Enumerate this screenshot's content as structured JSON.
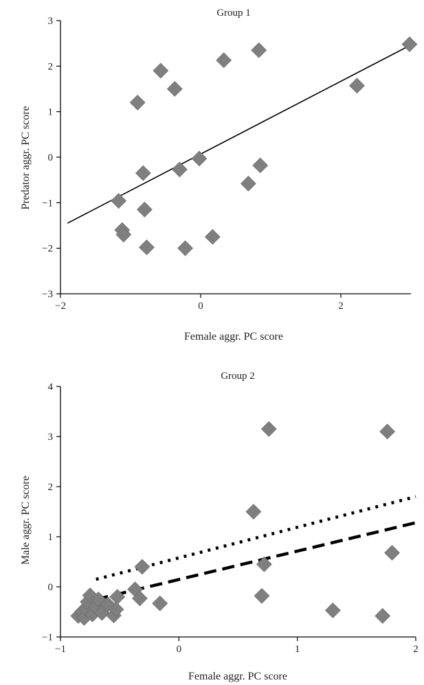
{
  "chart_data": [
    {
      "type": "scatter",
      "title": "Group 1",
      "xlabel": "Female aggr. PC score",
      "ylabel": "Predator aggr. PC score",
      "xlim": [
        -2,
        3
      ],
      "ylim": [
        -3,
        3
      ],
      "xticks": [
        "−2",
        "0",
        "2"
      ],
      "yticks": [
        "−3",
        "−2",
        "−1",
        "0",
        "1",
        "2",
        "3"
      ],
      "marker_color": "#7f7f7f",
      "points": [
        {
          "x": -1.17,
          "y": -0.96
        },
        {
          "x": -1.12,
          "y": -1.6
        },
        {
          "x": -1.1,
          "y": -1.7
        },
        {
          "x": -0.9,
          "y": 1.2
        },
        {
          "x": -0.82,
          "y": -0.35
        },
        {
          "x": -0.8,
          "y": -1.15
        },
        {
          "x": -0.77,
          "y": -1.98
        },
        {
          "x": -0.57,
          "y": 1.9
        },
        {
          "x": -0.37,
          "y": 1.5
        },
        {
          "x": -0.3,
          "y": -0.27
        },
        {
          "x": -0.22,
          "y": -2.0
        },
        {
          "x": -0.02,
          "y": -0.03
        },
        {
          "x": 0.17,
          "y": -1.75
        },
        {
          "x": 0.33,
          "y": 2.13
        },
        {
          "x": 0.68,
          "y": -0.58
        },
        {
          "x": 0.83,
          "y": 2.35
        },
        {
          "x": 0.85,
          "y": -0.18
        },
        {
          "x": 2.23,
          "y": 1.57
        },
        {
          "x": 2.98,
          "y": 2.48
        }
      ],
      "lines": [
        {
          "style": "solid",
          "x": [
            -1.9,
            2.98
          ],
          "y": [
            -1.45,
            2.45
          ]
        }
      ]
    },
    {
      "type": "scatter",
      "title": "Group 2",
      "xlabel": "Female aggr. PC score",
      "ylabel": "Male aggr. PC score",
      "xlim": [
        -1,
        2
      ],
      "ylim": [
        -1,
        4
      ],
      "xticks": [
        "−1",
        "0",
        "1",
        "2"
      ],
      "yticks": [
        "−1",
        "0",
        "1",
        "2",
        "3",
        "4"
      ],
      "marker_color": "#7f7f7f",
      "points": [
        {
          "x": -0.85,
          "y": -0.58
        },
        {
          "x": -0.82,
          "y": -0.5
        },
        {
          "x": -0.8,
          "y": -0.62
        },
        {
          "x": -0.78,
          "y": -0.45
        },
        {
          "x": -0.77,
          "y": -0.3
        },
        {
          "x": -0.75,
          "y": -0.17
        },
        {
          "x": -0.73,
          "y": -0.55
        },
        {
          "x": -0.7,
          "y": -0.4
        },
        {
          "x": -0.68,
          "y": -0.25
        },
        {
          "x": -0.65,
          "y": -0.52
        },
        {
          "x": -0.6,
          "y": -0.35
        },
        {
          "x": -0.55,
          "y": -0.57
        },
        {
          "x": -0.53,
          "y": -0.45
        },
        {
          "x": -0.52,
          "y": -0.2
        },
        {
          "x": -0.37,
          "y": -0.05
        },
        {
          "x": -0.33,
          "y": -0.23
        },
        {
          "x": -0.31,
          "y": 0.4
        },
        {
          "x": -0.16,
          "y": -0.33
        },
        {
          "x": 0.63,
          "y": 1.5
        },
        {
          "x": 0.7,
          "y": -0.18
        },
        {
          "x": 0.72,
          "y": 0.45
        },
        {
          "x": 0.76,
          "y": 3.15
        },
        {
          "x": 1.3,
          "y": -0.47
        },
        {
          "x": 1.72,
          "y": -0.58
        },
        {
          "x": 1.76,
          "y": 3.1
        },
        {
          "x": 1.8,
          "y": 0.68
        }
      ],
      "lines": [
        {
          "style": "dotted",
          "x": [
            -0.7,
            2.0
          ],
          "y": [
            0.15,
            1.8
          ]
        },
        {
          "style": "dashed",
          "x": [
            -0.7,
            2.0
          ],
          "y": [
            -0.25,
            1.28
          ]
        }
      ]
    }
  ]
}
